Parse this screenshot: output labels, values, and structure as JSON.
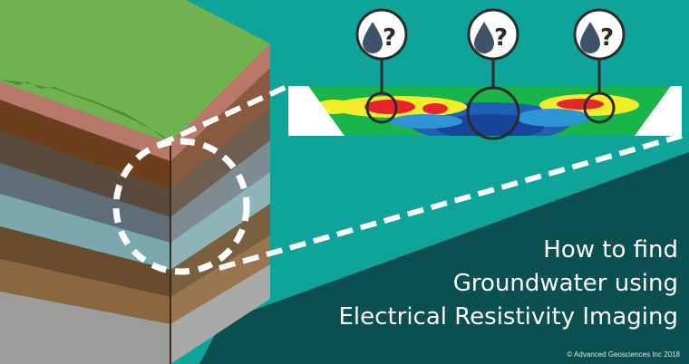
{
  "title": {
    "line1": "How to find",
    "line2": "Groundwater using",
    "line3": "Electrical Resistivity Imaging"
  },
  "copyright": "© Advanced Geosciences Inc 2018",
  "icons": {
    "marker_symbol": "?",
    "marker_icon": "water-drop-question-icon",
    "count": 3
  },
  "colors": {
    "background_teal": "#0fa49a",
    "dark_band": "#0c4f50",
    "grass": "#6fb24f",
    "topsoil": "#b7786a",
    "water_layer": "#8cc2c4",
    "resistivity_high": "#e6262a",
    "resistivity_low": "#1f5fb4",
    "text": "#ffffff"
  }
}
